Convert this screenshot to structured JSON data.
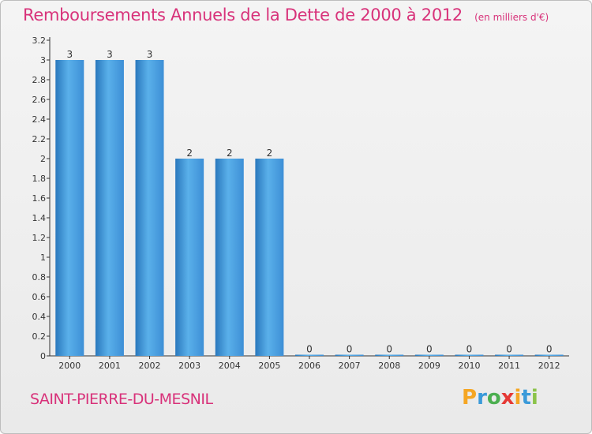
{
  "chart_data": {
    "type": "bar",
    "title": "Remboursements Annuels de la Dette de 2000 à 2012",
    "subtitle": "(en milliers d'€)",
    "categories": [
      "2000",
      "2001",
      "2002",
      "2003",
      "2004",
      "2005",
      "2006",
      "2007",
      "2008",
      "2009",
      "2010",
      "2011",
      "2012"
    ],
    "values": [
      3,
      3,
      3,
      2,
      2,
      2,
      0,
      0,
      0,
      0,
      0,
      0,
      0
    ],
    "data_labels": [
      "3",
      "3",
      "3",
      "2",
      "2",
      "2",
      "0",
      "0",
      "0",
      "0",
      "0",
      "0",
      "0"
    ],
    "ylim": [
      0,
      3.2
    ],
    "yticks": [
      "0",
      "0.2",
      "0.4",
      "0.6",
      "0.8",
      "1",
      "1.2",
      "1.4",
      "1.6",
      "1.8",
      "2",
      "2.2",
      "2.4",
      "2.6",
      "2.8",
      "3",
      "3.2"
    ],
    "grid": false,
    "legend": "none",
    "bar_color": "#3d8fd6",
    "bar_color_light": "#5ab0ea",
    "bar_color_dark": "#2a78bd"
  },
  "commune": "SAINT-PIERRE-DU-MESNIL",
  "logo": {
    "letters": [
      "P",
      "r",
      "o",
      "x",
      "i",
      "t",
      "i"
    ],
    "colors": [
      "#f5a623",
      "#3a9ad9",
      "#4caf50",
      "#e53935",
      "#f5a623",
      "#3a9ad9",
      "#8bc34a"
    ]
  },
  "accent_color": "#d8327a"
}
